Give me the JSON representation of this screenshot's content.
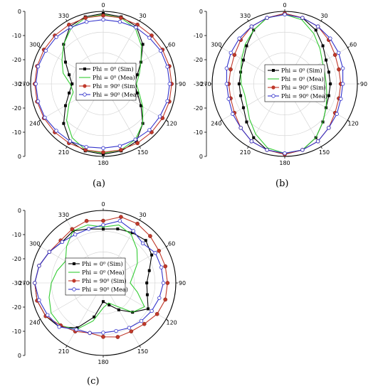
{
  "chart_data": [
    {
      "type": "polar-line",
      "panel_label": "(a)",
      "angle_ticks": [
        0,
        30,
        60,
        90,
        120,
        150,
        180,
        210,
        240,
        270,
        300,
        330
      ],
      "radial_ticks": [
        0,
        -10,
        -20,
        -30,
        -20,
        -10,
        0
      ],
      "rlim": [
        -35,
        0
      ],
      "grid": true,
      "legend_position": "center",
      "legend": [
        "Phi = 0⁰ (Sim)",
        "Phi = 0⁰ (Mea)",
        "Phi = 90⁰ (Sim)",
        "Phi = 90⁰ (Mea)"
      ],
      "theta": [
        0,
        15,
        30,
        45,
        60,
        75,
        90,
        105,
        120,
        135,
        150,
        165,
        180,
        195,
        210,
        225,
        240,
        255,
        270,
        285,
        300,
        315,
        330,
        345
      ],
      "series": [
        {
          "name": "Phi = 0⁰ (Sim)",
          "color": "#000000",
          "marker": "square",
          "values": [
            -1,
            -1.5,
            -3,
            -8,
            -14,
            -18,
            -20,
            -18,
            -14,
            -8,
            -3,
            -1.5,
            -1,
            -1.5,
            -3,
            -8,
            -14,
            -18,
            -20,
            -18,
            -14,
            -8,
            -3,
            -1.5
          ]
        },
        {
          "name": "Phi = 0⁰ (Mea)",
          "color": "#33cc33",
          "marker": "none",
          "values": [
            -1.5,
            -2,
            -4,
            -9,
            -14,
            -17,
            -19,
            -17,
            -13,
            -8,
            -4,
            -2,
            -1.5,
            -2,
            -5,
            -10,
            -16,
            -20,
            -19,
            -15,
            -12,
            -8,
            -4,
            -2
          ]
        },
        {
          "name": "Phi = 90⁰ (Sim)",
          "color": "#c0392b",
          "marker": "circle",
          "values": [
            -2,
            -2,
            -2,
            -2,
            -2,
            -2,
            -2,
            -2,
            -2,
            -2,
            -2,
            -2,
            -2,
            -2,
            -2,
            -2,
            -2,
            -2,
            -2,
            -2,
            -2,
            -2,
            -2,
            -2
          ]
        },
        {
          "name": "Phi = 90⁰ (Mea)",
          "color": "#3333cc",
          "marker": "circle-open",
          "values": [
            -4,
            -4,
            -3.5,
            -3.5,
            -3,
            -3,
            -3,
            -3,
            -3.5,
            -3.5,
            -4,
            -4,
            -4,
            -3.5,
            -3,
            -3,
            -2.5,
            -2.5,
            -2.5,
            -2.5,
            -3,
            -3,
            -3.5,
            -4
          ]
        }
      ]
    },
    {
      "type": "polar-line",
      "panel_label": "(b)",
      "angle_ticks": [
        0,
        30,
        60,
        90,
        120,
        150,
        180,
        210,
        240,
        270,
        300,
        330
      ],
      "radial_ticks": [
        0,
        -10,
        -20,
        -30,
        -20,
        -10,
        0
      ],
      "rlim": [
        -35,
        0
      ],
      "grid": true,
      "legend_position": "center",
      "legend": [
        "Phi = 0⁰ (Sim)",
        "Phi = 0⁰ (Mea)",
        "Phi = 90⁰ (Sim)",
        "Phi = 90⁰ (Mea)"
      ],
      "theta": [
        0,
        15,
        30,
        45,
        60,
        75,
        90,
        105,
        120,
        135,
        150,
        165,
        180,
        195,
        210,
        225,
        240,
        255,
        270,
        285,
        300,
        315,
        330,
        345
      ],
      "series": [
        {
          "name": "Phi = 0⁰ (Sim)",
          "color": "#000000",
          "marker": "square",
          "values": [
            -1,
            -2,
            -5,
            -9,
            -12,
            -13,
            -13,
            -13,
            -12,
            -9,
            -5,
            -2,
            -1,
            -2,
            -5,
            -9,
            -12,
            -13,
            -13,
            -13,
            -12,
            -9,
            -5,
            -2
          ]
        },
        {
          "name": "Phi = 0⁰ (Mea)",
          "color": "#33cc33",
          "marker": "none",
          "values": [
            -1.5,
            -3,
            -7,
            -11,
            -14,
            -15,
            -15,
            -14,
            -12,
            -9,
            -5,
            -2,
            -1.5,
            -3,
            -7,
            -11,
            -14,
            -15,
            -14,
            -13,
            -11,
            -8,
            -5,
            -2
          ]
        },
        {
          "name": "Phi = 90⁰ (Sim)",
          "color": "#c0392b",
          "marker": "circle",
          "values": [
            -1,
            -2,
            -3,
            -5,
            -7,
            -8,
            -8,
            -8,
            -7,
            -5,
            -3,
            -2,
            -1,
            -2,
            -3,
            -5,
            -7,
            -8,
            -8,
            -8,
            -7,
            -5,
            -3,
            -2
          ]
        },
        {
          "name": "Phi = 90⁰ (Mea)",
          "color": "#3333cc",
          "marker": "circle-open",
          "values": [
            -1.5,
            -2,
            -3,
            -4,
            -5,
            -6,
            -7,
            -7,
            -6,
            -5,
            -3,
            -2,
            -1.5,
            -2,
            -3,
            -5,
            -6,
            -7,
            -7,
            -6,
            -5,
            -4,
            -3,
            -2
          ]
        }
      ]
    },
    {
      "type": "polar-line",
      "panel_label": "(c)",
      "angle_ticks": [
        0,
        30,
        60,
        90,
        120,
        150,
        180,
        210,
        240,
        270,
        300,
        330
      ],
      "radial_ticks": [
        0,
        -10,
        -20,
        -30,
        -20,
        -10,
        0
      ],
      "rlim": [
        -35,
        0
      ],
      "grid": true,
      "legend_position": "center",
      "legend": [
        "Phi = 0⁰ (Sim)",
        "Phi = 0⁰ (Mea)",
        "Phi = 90⁰ (Sim)",
        "Phi = 90⁰ (Mea)"
      ],
      "theta": [
        0,
        15,
        30,
        45,
        60,
        75,
        90,
        105,
        120,
        135,
        150,
        165,
        180,
        195,
        210,
        225,
        240,
        255,
        270,
        285,
        300,
        315,
        330,
        345
      ],
      "series": [
        {
          "name": "Phi = 0⁰ (Sim)",
          "color": "#000000",
          "marker": "square",
          "values": [
            -9,
            -8,
            -7,
            -6,
            -8,
            -12,
            -14,
            -13,
            -10,
            -15,
            -20,
            -24,
            -26,
            -18,
            -10,
            -5,
            -3,
            -2,
            -2,
            -3,
            -5,
            -7,
            -6,
            -8
          ]
        },
        {
          "name": "Phi = 0⁰ (Mea)",
          "color": "#33cc33",
          "marker": "none",
          "values": [
            -8,
            -6,
            -8,
            -12,
            -16,
            -20,
            -22,
            -18,
            -12,
            -15,
            -22,
            -25,
            -23,
            -16,
            -9,
            -6,
            -6,
            -8,
            -10,
            -12,
            -14,
            -10,
            -6,
            -6
          ]
        },
        {
          "name": "Phi = 90⁰ (Sim)",
          "color": "#c0392b",
          "marker": "circle",
          "values": [
            -5,
            -2,
            -2,
            -3,
            -4,
            -4,
            -4,
            -4,
            -5,
            -7,
            -8,
            -8,
            -9,
            -10,
            -8,
            -6,
            -3,
            -2,
            -2,
            -3,
            -5,
            -6,
            -5,
            -4
          ]
        },
        {
          "name": "Phi = 90⁰ (Mea)",
          "color": "#3333cc",
          "marker": "circle-open",
          "values": [
            -7,
            -4,
            -6,
            -8,
            -6,
            -6,
            -6,
            -7,
            -8,
            -9,
            -10,
            -11,
            -11,
            -10,
            -9,
            -5,
            -4,
            -3,
            -2,
            -3,
            -5,
            -7,
            -8,
            -8
          ]
        }
      ]
    }
  ]
}
